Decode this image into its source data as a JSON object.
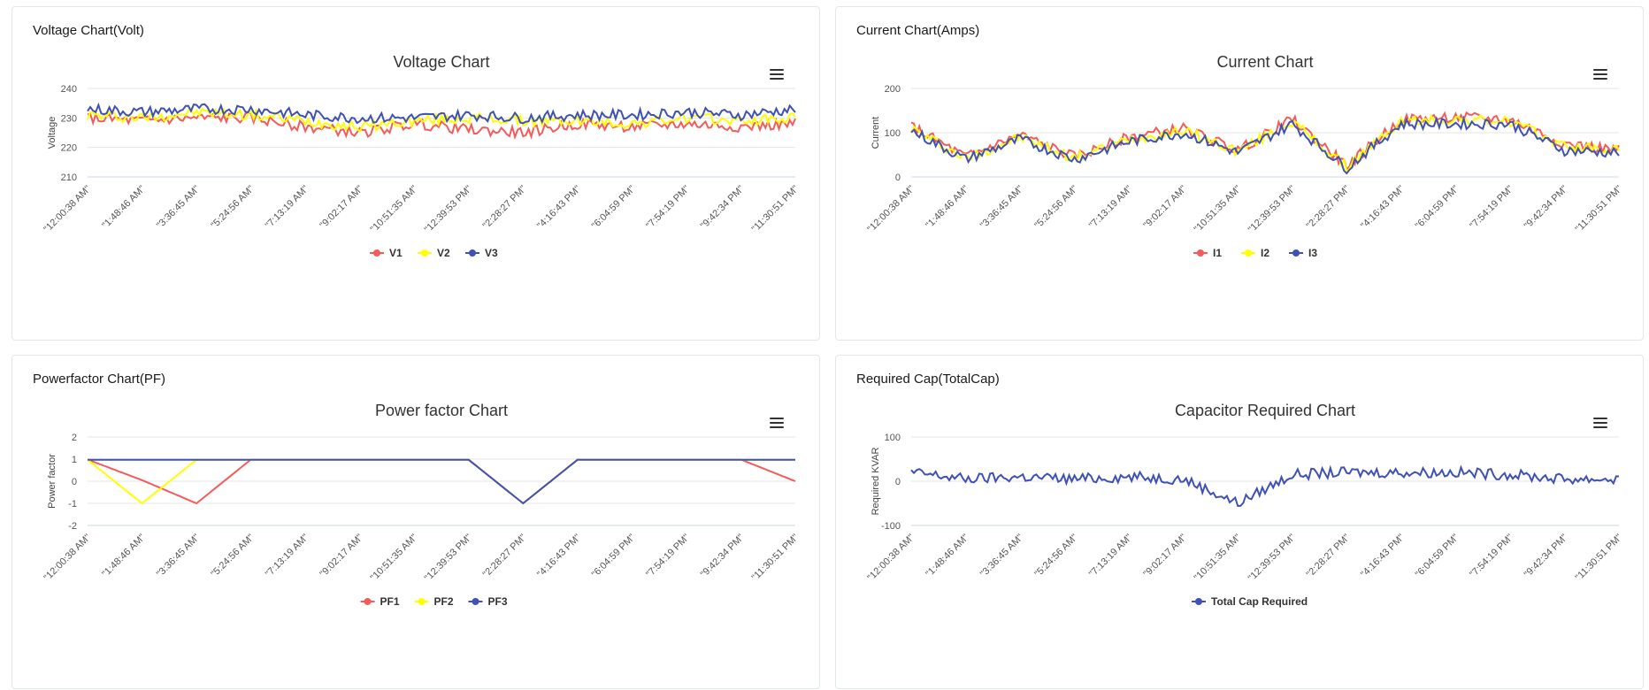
{
  "panels": {
    "voltage": {
      "header": "Voltage Chart(Volt)"
    },
    "current": {
      "header": "Current Chart(Amps)"
    },
    "pf": {
      "header": "Powerfactor Chart(PF)"
    },
    "cap": {
      "header": "Required Cap(TotalCap)"
    }
  },
  "icons": {
    "menu": "hamburger-menu-icon"
  },
  "chart_data": [
    {
      "id": "voltage",
      "type": "line",
      "title": "Voltage Chart",
      "ylabel": "Voltage",
      "xlabel": "",
      "ylim": [
        210,
        240
      ],
      "yticks": [
        210,
        220,
        230,
        240
      ],
      "grid": true,
      "legend": "bottom-center",
      "categories": [
        "\"12:00:38 AM\"",
        "\"1:48:46 AM\"",
        "\"3:36:45 AM\"",
        "\"5:24:56 AM\"",
        "\"7:13:19 AM\"",
        "\"9:02:17 AM\"",
        "\"10:51:35 AM\"",
        "\"12:39:53 PM\"",
        "\"2:28:27 PM\"",
        "\"4:16:43 PM\"",
        "\"6:04:59 PM\"",
        "\"7:54:19 PM\"",
        "\"9:42:34 PM\"",
        "\"11:30:51 PM\""
      ],
      "series": [
        {
          "name": "V1",
          "color": "#f45b5b",
          "values": [
            230,
            229,
            230,
            230,
            227,
            225,
            228,
            226,
            225,
            228,
            227,
            228,
            227,
            228
          ]
        },
        {
          "name": "V2",
          "color": "#ffff00",
          "values": [
            231,
            230,
            232,
            231,
            229,
            227,
            229,
            230,
            229,
            229,
            228,
            230,
            229,
            230
          ]
        },
        {
          "name": "V3",
          "color": "#3f51b5",
          "values": [
            233,
            232,
            233,
            233,
            231,
            230,
            230,
            231,
            230,
            231,
            231,
            232,
            231,
            233
          ]
        }
      ]
    },
    {
      "id": "current",
      "type": "line",
      "title": "Current Chart",
      "ylabel": "Current",
      "xlabel": "",
      "ylim": [
        0,
        200
      ],
      "yticks": [
        0,
        100,
        200
      ],
      "grid": true,
      "legend": "bottom-center",
      "categories": [
        "\"12:00:38 AM\"",
        "\"1:48:46 AM\"",
        "\"3:36:45 AM\"",
        "\"5:24:56 AM\"",
        "\"7:13:19 AM\"",
        "\"9:02:17 AM\"",
        "\"10:51:35 AM\"",
        "\"12:39:53 PM\"",
        "\"2:28:27 PM\"",
        "\"4:16:43 PM\"",
        "\"6:04:59 PM\"",
        "\"7:54:19 PM\"",
        "\"9:42:34 PM\"",
        "\"11:30:51 PM\""
      ],
      "series": [
        {
          "name": "I1",
          "color": "#f45b5b",
          "values": [
            115,
            45,
            95,
            45,
            90,
            110,
            60,
            130,
            25,
            130,
            135,
            130,
            75,
            60
          ]
        },
        {
          "name": "I2",
          "color": "#ffff00",
          "values": [
            110,
            42,
            90,
            42,
            85,
            105,
            58,
            125,
            22,
            125,
            130,
            125,
            70,
            58
          ]
        },
        {
          "name": "I3",
          "color": "#3f51b5",
          "values": [
            105,
            40,
            85,
            40,
            80,
            100,
            55,
            120,
            20,
            120,
            120,
            120,
            60,
            55
          ]
        }
      ]
    },
    {
      "id": "pf",
      "type": "line",
      "title": "Power factor Chart",
      "ylabel": "Power factor",
      "xlabel": "",
      "ylim": [
        -2,
        2
      ],
      "yticks": [
        -2,
        -1,
        0,
        1,
        2
      ],
      "grid": true,
      "legend": "bottom-center",
      "categories": [
        "\"12:00:38 AM\"",
        "\"1:48:46 AM\"",
        "\"3:36:45 AM\"",
        "\"5:24:56 AM\"",
        "\"7:13:19 AM\"",
        "\"9:02:17 AM\"",
        "\"10:51:35 AM\"",
        "\"12:39:53 PM\"",
        "\"2:28:27 PM\"",
        "\"4:16:43 PM\"",
        "\"6:04:59 PM\"",
        "\"7:54:19 PM\"",
        "\"9:42:34 PM\"",
        "\"11:30:51 PM\""
      ],
      "series": [
        {
          "name": "PF1",
          "color": "#f45b5b",
          "values": [
            0.98,
            0.05,
            -1,
            0.98,
            0.98,
            0.98,
            0.98,
            0.98,
            -1,
            0.98,
            0.98,
            0.98,
            0.98,
            0
          ]
        },
        {
          "name": "PF2",
          "color": "#ffff00",
          "values": [
            0.97,
            -1,
            0.97,
            0.97,
            0.97,
            0.97,
            0.97,
            0.97,
            -1,
            0.97,
            0.97,
            0.97,
            0.97,
            0.97
          ]
        },
        {
          "name": "PF3",
          "color": "#3f51b5",
          "values": [
            0.97,
            0.97,
            0.97,
            0.97,
            0.97,
            0.97,
            0.97,
            0.97,
            -1,
            0.97,
            0.97,
            0.97,
            0.97,
            0.97
          ]
        }
      ]
    },
    {
      "id": "cap",
      "type": "line",
      "title": "Capacitor Required Chart",
      "ylabel": "Required KVAR",
      "xlabel": "",
      "ylim": [
        -100,
        100
      ],
      "yticks": [
        -100,
        0,
        100
      ],
      "grid": true,
      "legend": "bottom-center",
      "categories": [
        "\"12:00:38 AM\"",
        "\"1:48:46 AM\"",
        "\"3:36:45 AM\"",
        "\"5:24:56 AM\"",
        "\"7:13:19 AM\"",
        "\"9:02:17 AM\"",
        "\"10:51:35 AM\"",
        "\"12:39:53 PM\"",
        "\"2:28:27 PM\"",
        "\"4:16:43 PM\"",
        "\"6:04:59 PM\"",
        "\"7:54:19 PM\"",
        "\"9:42:34 PM\"",
        "\"11:30:51 PM\""
      ],
      "series": [
        {
          "name": "Total Cap Required",
          "color": "#3f51b5",
          "values": [
            20,
            5,
            10,
            5,
            10,
            5,
            -50,
            15,
            20,
            20,
            20,
            15,
            5,
            5
          ]
        }
      ]
    }
  ]
}
